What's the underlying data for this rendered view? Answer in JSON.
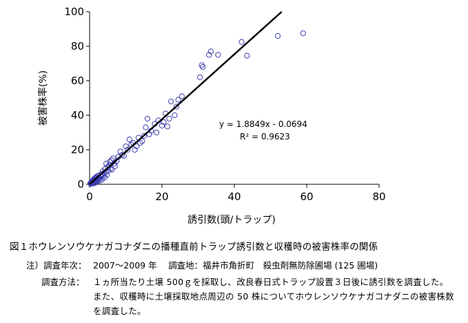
{
  "chart_data": {
    "type": "scatter",
    "xlabel": "誘引数(頭/トラップ)",
    "ylabel": "被害株率(%)",
    "xlim": [
      0,
      80
    ],
    "ylim": [
      0,
      100
    ],
    "xticks": [
      "0",
      "20",
      "40",
      "60",
      "80"
    ],
    "yticks": [
      "0",
      "20",
      "40",
      "60",
      "80",
      "100"
    ],
    "grid": false,
    "trendline": {
      "slope": 1.8849,
      "intercept": -0.0694
    },
    "equation": "y = 1.8849x - 0.0694",
    "r2": "R² = 0.9623",
    "points": [
      [
        0.2,
        0.5
      ],
      [
        0.3,
        0.2
      ],
      [
        0.4,
        1
      ],
      [
        0.5,
        0.4
      ],
      [
        0.6,
        1.5
      ],
      [
        0.7,
        0.8
      ],
      [
        0.8,
        2
      ],
      [
        0.9,
        1.2
      ],
      [
        1,
        0.5
      ],
      [
        1,
        2.5
      ],
      [
        1.1,
        1.8
      ],
      [
        1.2,
        3
      ],
      [
        1.3,
        1
      ],
      [
        1.4,
        2.2
      ],
      [
        1.5,
        0.8
      ],
      [
        1.5,
        3.5
      ],
      [
        1.6,
        2
      ],
      [
        1.7,
        4
      ],
      [
        1.8,
        1.5
      ],
      [
        1.9,
        3
      ],
      [
        2,
        2.5
      ],
      [
        2,
        4.5
      ],
      [
        2.2,
        3.2
      ],
      [
        2.3,
        1.8
      ],
      [
        2.4,
        5
      ],
      [
        2.5,
        2.8
      ],
      [
        2.6,
        4
      ],
      [
        2.8,
        3.5
      ],
      [
        3,
        2.2
      ],
      [
        3,
        5.5
      ],
      [
        3.2,
        4.5
      ],
      [
        3.4,
        6
      ],
      [
        3.5,
        3
      ],
      [
        3.6,
        7.5
      ],
      [
        3.8,
        5
      ],
      [
        4,
        6.5
      ],
      [
        4.2,
        4
      ],
      [
        4.3,
        9
      ],
      [
        4.5,
        7
      ],
      [
        4.6,
        12
      ],
      [
        4.8,
        5.5
      ],
      [
        5,
        10
      ],
      [
        5.2,
        8
      ],
      [
        5.4,
        11
      ],
      [
        5.6,
        13
      ],
      [
        5.8,
        9
      ],
      [
        6,
        14
      ],
      [
        6.2,
        8.5
      ],
      [
        6.5,
        15
      ],
      [
        6.8,
        12
      ],
      [
        7,
        10.5
      ],
      [
        7.5,
        13.5
      ],
      [
        8,
        16
      ],
      [
        8.5,
        19
      ],
      [
        9,
        17
      ],
      [
        9.5,
        16.5
      ],
      [
        10,
        22
      ],
      [
        10.5,
        20
      ],
      [
        11,
        26
      ],
      [
        11.5,
        23
      ],
      [
        12,
        24
      ],
      [
        12.5,
        20
      ],
      [
        13,
        22
      ],
      [
        13.5,
        27
      ],
      [
        14,
        24
      ],
      [
        14.5,
        25
      ],
      [
        15,
        28
      ],
      [
        15.5,
        33
      ],
      [
        16,
        38
      ],
      [
        16.5,
        29
      ],
      [
        17,
        31
      ],
      [
        18,
        35
      ],
      [
        18.5,
        30
      ],
      [
        19,
        37
      ],
      [
        20,
        34
      ],
      [
        20.5,
        36
      ],
      [
        21,
        41
      ],
      [
        21.5,
        33.5
      ],
      [
        22,
        38
      ],
      [
        22.5,
        48
      ],
      [
        23.5,
        40
      ],
      [
        24,
        45
      ],
      [
        24.5,
        49
      ],
      [
        25.5,
        51
      ],
      [
        30.5,
        62
      ],
      [
        31,
        69
      ],
      [
        31.3,
        68
      ],
      [
        33,
        75
      ],
      [
        33.5,
        77
      ],
      [
        35.5,
        75
      ],
      [
        42,
        82.5
      ],
      [
        43.5,
        74.5
      ],
      [
        52,
        86
      ],
      [
        59,
        87.5
      ]
    ]
  },
  "caption": "図１ホウレンソウケナガコナダニの播種直前トラップ誘引数と収穫時の被害株率の関係",
  "notes": {
    "label1": "注）調査年次：",
    "text1": "2007～2009 年　 調査地：福井市角折町　殺虫剤無防除圃場 (125 圃場)",
    "label2": "調査方法：",
    "text2": "１ヵ所当たり土壌 500ｇを採取し、改良春日式トラップ設置３日後に誘引数を調査した。また、収穫時に土壌採取地点周辺の 50 株についてホウレンソウケナガコナダニの被害株数を調査した。"
  }
}
